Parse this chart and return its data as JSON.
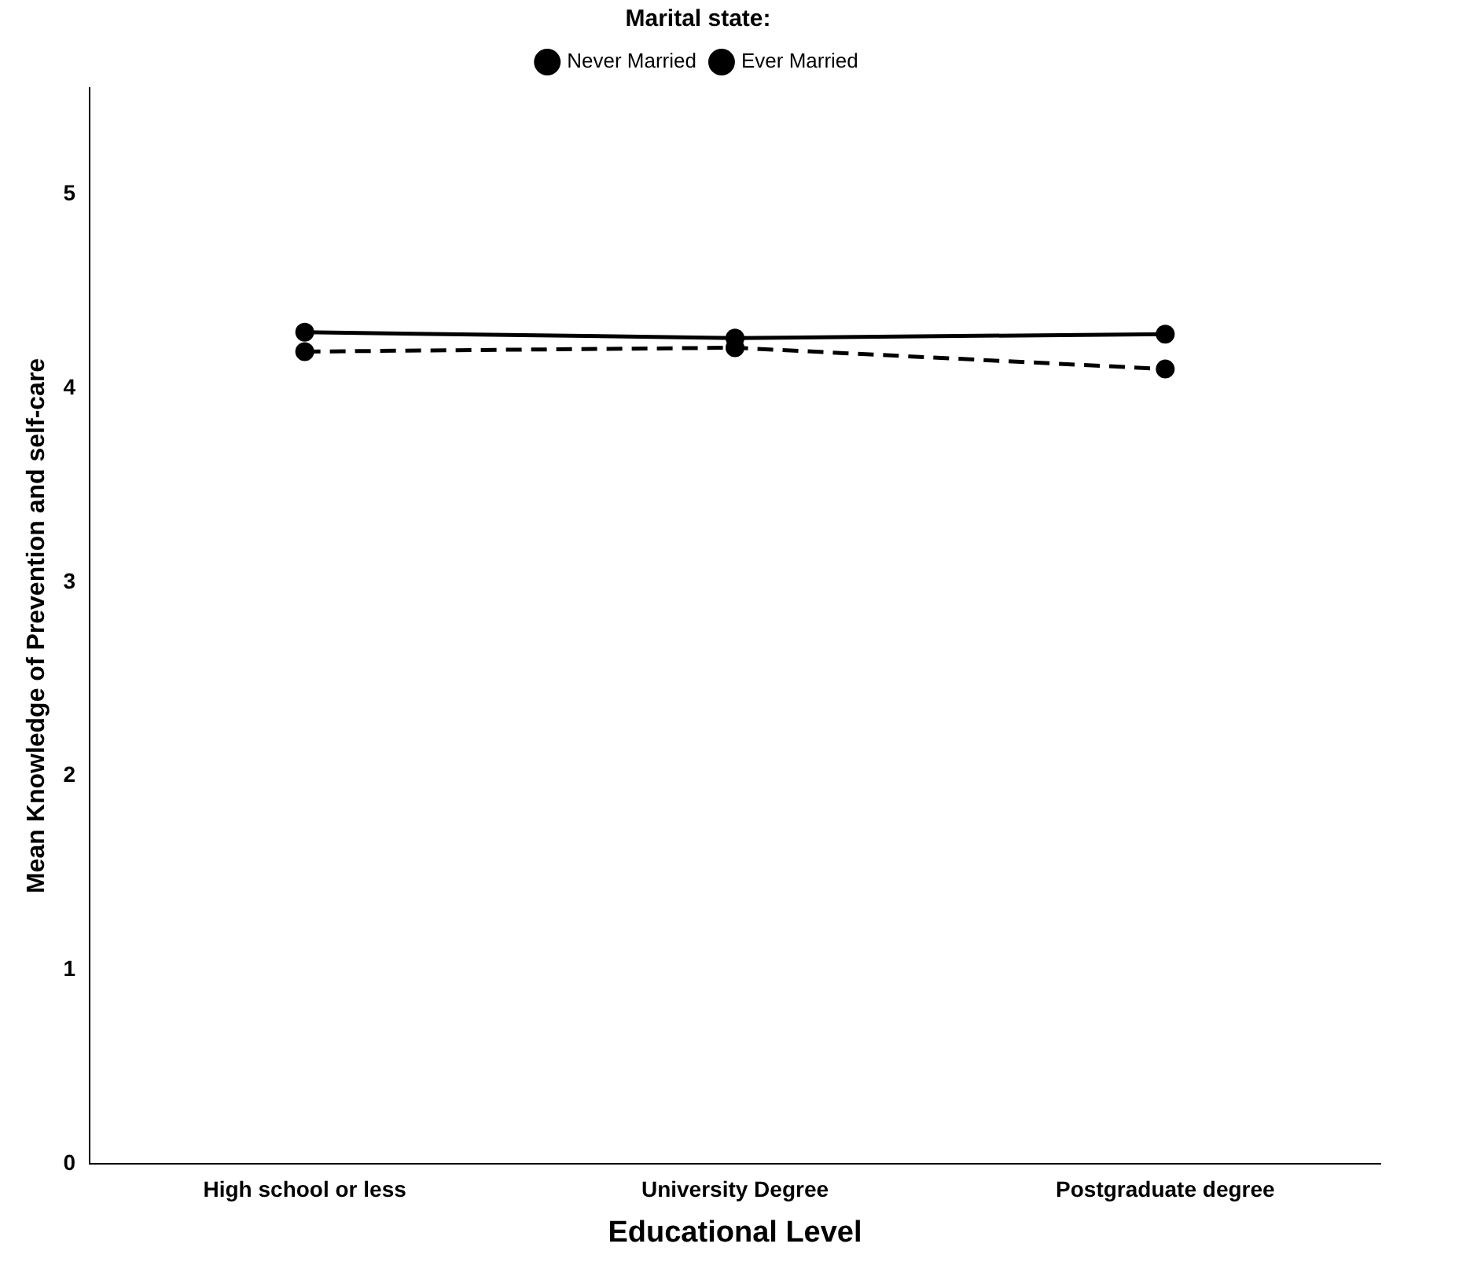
{
  "chart_data": {
    "type": "line",
    "xlabel": "Educational Level",
    "ylabel": "Mean Knowledge of Prevention and self-care",
    "legend_title": "Marital state:",
    "legend": "top",
    "marker": "circle",
    "grid": false,
    "categories": [
      "High school or less",
      "University Degree",
      "Postgraduate degree"
    ],
    "ylim": [
      0,
      5.55
    ],
    "yticks": [
      0,
      1,
      2,
      3,
      4,
      5
    ],
    "series": [
      {
        "name": "Never Married",
        "color": "#000000",
        "line_style": "dashed",
        "values": [
          4.19,
          4.21,
          4.1
        ]
      },
      {
        "name": "Ever Married",
        "color": "#000000",
        "line_style": "solid",
        "values": [
          4.29,
          4.26,
          4.28
        ]
      }
    ]
  }
}
